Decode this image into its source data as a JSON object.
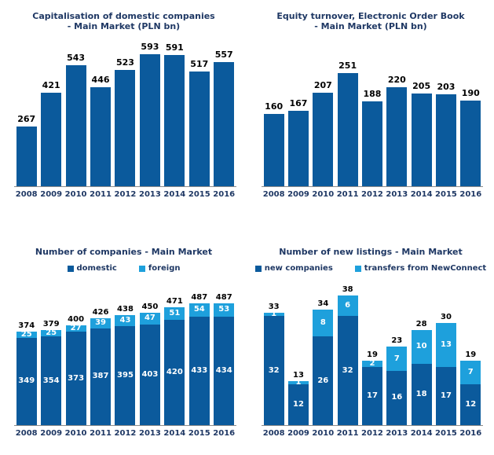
{
  "colors": {
    "background": "#FFFFFF",
    "dark_blue": "#0B5A9C",
    "light_blue": "#1EA0DC",
    "axis_gray": "#8C8C8C",
    "text_navy": "#1F3864",
    "label_black": "#000000",
    "bar_label_white": "#FFFFFF"
  },
  "chart_data": [
    {
      "id": "capitalisation",
      "type": "bar",
      "title_lines": [
        "Capitalisation of domestic companies",
        "- Main Market (PLN bn)"
      ],
      "categories": [
        "2008",
        "2009",
        "2010",
        "2011",
        "2012",
        "2013",
        "2014",
        "2015",
        "2016"
      ],
      "values": [
        267,
        421,
        543,
        446,
        523,
        593,
        591,
        517,
        557
      ],
      "bar_color": "#0B5A9C",
      "ylim": [
        0,
        650
      ],
      "grid": false,
      "legend_position": "none",
      "data_labels": "above"
    },
    {
      "id": "equity-turnover",
      "type": "bar",
      "title_lines": [
        "Equity turnover, Electronic Order Book",
        "- Main Market (PLN bn)"
      ],
      "categories": [
        "2008",
        "2009",
        "2010",
        "2011",
        "2012",
        "2013",
        "2014",
        "2015",
        "2016"
      ],
      "values": [
        160,
        167,
        207,
        251,
        188,
        220,
        205,
        203,
        190
      ],
      "bar_color": "#0B5A9C",
      "ylim": [
        0,
        320
      ],
      "grid": false,
      "legend_position": "none",
      "data_labels": "above"
    },
    {
      "id": "number-of-companies",
      "type": "bar",
      "stacked": true,
      "title_lines": [
        "Number of companies - Main Market"
      ],
      "categories": [
        "2008",
        "2009",
        "2010",
        "2011",
        "2012",
        "2013",
        "2014",
        "2015",
        "2016"
      ],
      "series": [
        {
          "name": "domestic",
          "color": "#0B5A9C",
          "values": [
            349,
            354,
            373,
            387,
            395,
            403,
            420,
            433,
            434
          ]
        },
        {
          "name": "foreign",
          "color": "#1EA0DC",
          "values": [
            25,
            25,
            27,
            39,
            43,
            47,
            51,
            54,
            53
          ]
        }
      ],
      "totals": [
        374,
        379,
        400,
        426,
        438,
        450,
        471,
        487,
        487
      ],
      "ylim": [
        0,
        530
      ],
      "grid": false,
      "legend_position": "top",
      "data_labels": "inside-and-total"
    },
    {
      "id": "number-of-new-listings",
      "type": "bar",
      "stacked": true,
      "title_lines": [
        "Number of new listings - Main Market"
      ],
      "categories": [
        "2008",
        "2009",
        "2010",
        "2011",
        "2012",
        "2013",
        "2014",
        "2015",
        "2016"
      ],
      "series": [
        {
          "name": "new companies",
          "color": "#0B5A9C",
          "values": [
            32,
            12,
            26,
            32,
            17,
            16,
            18,
            17,
            12
          ]
        },
        {
          "name": "transfers from NewConnect",
          "color": "#1EA0DC",
          "values": [
            1,
            1,
            8,
            6,
            2,
            7,
            10,
            13,
            7
          ]
        }
      ],
      "totals": [
        33,
        13,
        34,
        38,
        19,
        23,
        28,
        30,
        19
      ],
      "ylim": [
        0,
        39
      ],
      "grid": false,
      "legend_position": "top",
      "data_labels": "inside-and-total"
    }
  ]
}
